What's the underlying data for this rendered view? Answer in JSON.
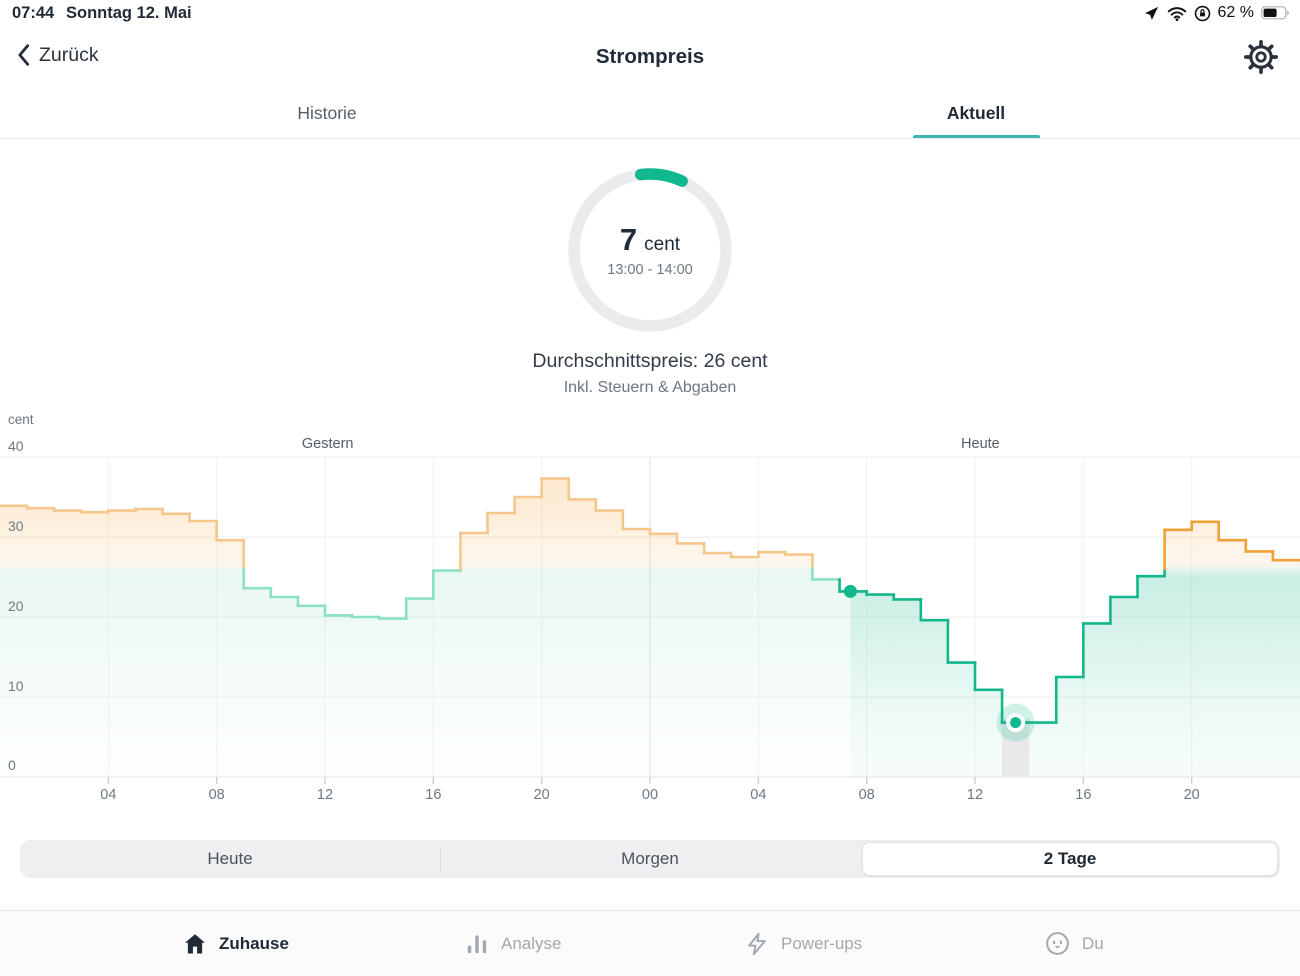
{
  "status_bar": {
    "time": "07:44",
    "date": "Sonntag 12. Mai",
    "battery_percent": "62 %",
    "battery_level": 0.62,
    "icons": [
      "location-arrow",
      "wifi",
      "rotation-lock",
      "battery"
    ]
  },
  "header": {
    "back_label": "Zurück",
    "title": "Strompreis",
    "settings_icon": "gear"
  },
  "tabs": [
    {
      "label": "Historie",
      "active": false
    },
    {
      "label": "Aktuell",
      "active": true
    }
  ],
  "gauge": {
    "value": "7",
    "unit": "cent",
    "time_range": "13:00 - 14:00",
    "arc_start_deg": -7,
    "arc_end_deg": 25,
    "arc_color": "#12b88d",
    "ring_color": "#ebebee"
  },
  "summary": {
    "average_line": "Durchschnittspreis: 26 cent",
    "taxes_line": "Inkl. Steuern & Abgaben"
  },
  "chart_data": {
    "type": "step-line",
    "title": "Strompreis je Stunde, Gestern und Heute",
    "ylabel": "cent",
    "ylim": [
      0,
      40
    ],
    "yticks": [
      40,
      30,
      20,
      10,
      0
    ],
    "x_tick_labels": [
      "04",
      "08",
      "12",
      "16",
      "20",
      "00",
      "04",
      "08",
      "12",
      "16",
      "20"
    ],
    "x_tick_hours": [
      4,
      8,
      12,
      16,
      20,
      24,
      28,
      32,
      36,
      40,
      44
    ],
    "hours_total": 48,
    "average_cent": 26,
    "section_labels": [
      {
        "text": "Gestern",
        "center_hour": 12.1
      },
      {
        "text": "Heute",
        "center_hour": 36.2
      }
    ],
    "series": [
      {
        "name": "Gestern",
        "values": [
          33.9,
          33.6,
          33.3,
          33.1,
          33.3,
          33.5,
          32.9,
          32.0,
          29.6,
          23.6,
          22.5,
          21.4,
          20.2,
          20.0,
          19.8,
          22.3,
          25.8,
          30.5,
          33.0,
          35.0,
          37.3,
          34.7,
          33.3,
          31.0
        ]
      },
      {
        "name": "Heute",
        "values": [
          30.4,
          29.2,
          28.0,
          27.5,
          28.1,
          27.8,
          24.7,
          23.2,
          22.8,
          22.2,
          19.6,
          14.3,
          10.9,
          6.8,
          6.8,
          12.5,
          19.2,
          22.5,
          25.1,
          30.9,
          31.9,
          29.6,
          28.2,
          27.1
        ]
      }
    ],
    "now_marker": {
      "global_hour": 31.4,
      "value": 23.2
    },
    "min_marker": {
      "global_hour": 37.5,
      "value": 6.8,
      "band_start_hour": 37,
      "band_end_hour": 38
    },
    "colors": {
      "past_above_avg": "#f5c78c",
      "past_below_avg": "#8ce0c6",
      "future_above_avg": "#efa137",
      "future_below_avg": "#12b78c",
      "grid": "#ededf0",
      "midnight_grid": "#e2e2e7",
      "tick": "#c9ccd2",
      "band": "#e9e9ec"
    }
  },
  "range_selector": {
    "options": [
      {
        "label": "Heute",
        "selected": false
      },
      {
        "label": "Morgen",
        "selected": false
      },
      {
        "label": "2 Tage",
        "selected": true
      }
    ]
  },
  "bottom_nav": {
    "items": [
      {
        "label": "Zuhause",
        "icon": "home",
        "active": true
      },
      {
        "label": "Analyse",
        "icon": "bar-chart",
        "active": false
      },
      {
        "label": "Power-ups",
        "icon": "lightning",
        "active": false
      },
      {
        "label": "Du",
        "icon": "face",
        "active": false
      }
    ]
  }
}
